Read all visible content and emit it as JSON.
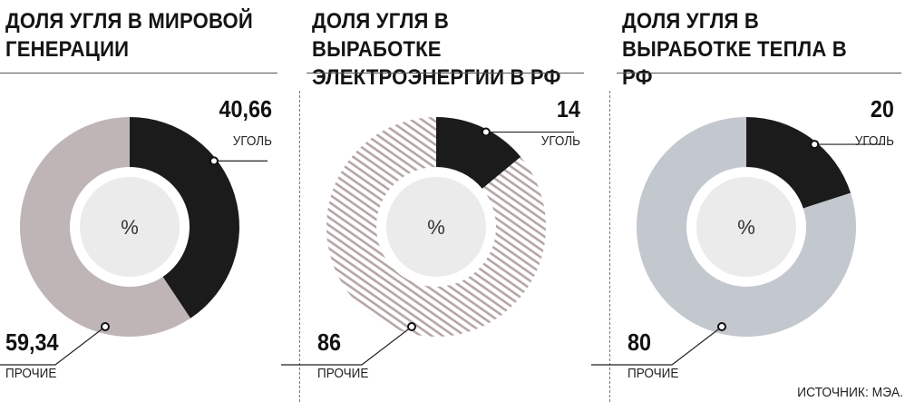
{
  "chart_data": [
    {
      "type": "pie",
      "title": "ДОЛЯ УГЛЯ В МИРОВОЙ ГЕНЕРАЦИИ",
      "center_label": "%",
      "slices": [
        {
          "label": "УГОЛЬ",
          "value": 40.66,
          "value_text": "40,66",
          "color": "#1b1b1b",
          "fill": "solid"
        },
        {
          "label": "ПРОЧИЕ",
          "value": 59.34,
          "value_text": "59,34",
          "color": "#bfb5b6",
          "fill": "solid"
        }
      ]
    },
    {
      "type": "pie",
      "title": "ДОЛЯ УГЛЯ В ВЫРАБОТКЕ ЭЛЕКТРОЭНЕРГИИ В РФ",
      "center_label": "%",
      "slices": [
        {
          "label": "УГОЛЬ",
          "value": 14,
          "value_text": "14",
          "color": "#1b1b1b",
          "fill": "solid"
        },
        {
          "label": "ПРОЧИЕ",
          "value": 86,
          "value_text": "86",
          "color": "#b8a8a8",
          "fill": "hatched"
        }
      ]
    },
    {
      "type": "pie",
      "title": "ДОЛЯ УГЛЯ В ВЫРАБОТКЕ ТЕПЛА В РФ",
      "center_label": "%",
      "slices": [
        {
          "label": "УГОЛЬ",
          "value": 20,
          "value_text": "20",
          "color": "#1b1b1b",
          "fill": "solid"
        },
        {
          "label": "ПРОЧИЕ",
          "value": 80,
          "value_text": "80",
          "color": "#c3c7ce",
          "fill": "solid"
        }
      ]
    }
  ],
  "source": "ИСТОЧНИК: МЭА."
}
